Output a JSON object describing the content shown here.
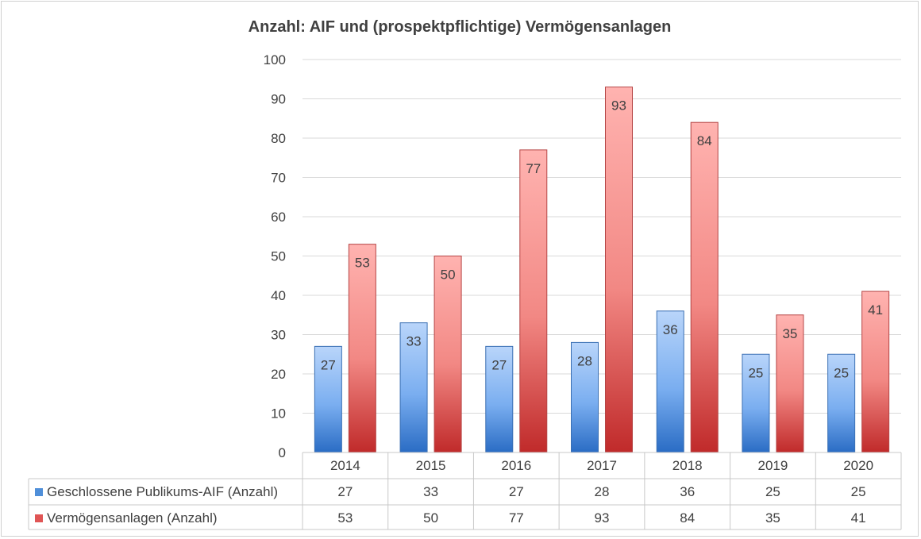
{
  "chart_data": {
    "type": "bar",
    "title": "Anzahl: AIF und (prospektpflichtige) Vermögensanlagen",
    "xlabel": "",
    "ylabel": "",
    "categories": [
      "2014",
      "2015",
      "2016",
      "2017",
      "2018",
      "2019",
      "2020"
    ],
    "ylim": [
      0,
      100
    ],
    "yticks": [
      0,
      10,
      20,
      30,
      40,
      50,
      60,
      70,
      80,
      90,
      100
    ],
    "grid": true,
    "legend": "data-table",
    "series": [
      {
        "name": "Geschlossene Publikums-AIF (Anzahl)",
        "color": "#4f8fd9",
        "values": [
          27,
          33,
          27,
          28,
          36,
          25,
          25
        ]
      },
      {
        "name": "Vermögensanlagen (Anzahl)",
        "color": "#e05555",
        "values": [
          53,
          50,
          77,
          93,
          84,
          35,
          41
        ]
      }
    ]
  }
}
